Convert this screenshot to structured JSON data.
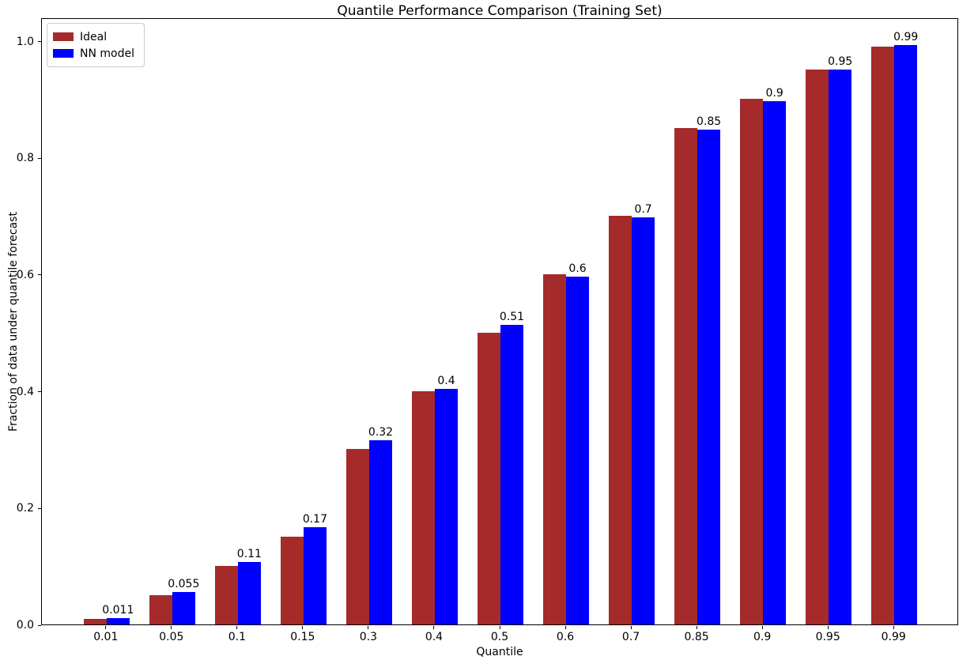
{
  "chart_data": {
    "type": "bar",
    "title": "Quantile Performance Comparison (Training Set)",
    "xlabel": "Quantile",
    "ylabel": "Fraction of data under quantile forecast",
    "categories": [
      "0.01",
      "0.05",
      "0.1",
      "0.15",
      "0.3",
      "0.4",
      "0.5",
      "0.6",
      "0.7",
      "0.85",
      "0.9",
      "0.95",
      "0.99"
    ],
    "series": [
      {
        "name": "Ideal",
        "color": "#A52A2A",
        "values": [
          0.01,
          0.05,
          0.1,
          0.15,
          0.3,
          0.4,
          0.5,
          0.6,
          0.7,
          0.85,
          0.9,
          0.95,
          0.99
        ]
      },
      {
        "name": "NN model",
        "color": "#0000FF",
        "values": [
          0.011,
          0.055,
          0.107,
          0.166,
          0.315,
          0.404,
          0.513,
          0.596,
          0.697,
          0.848,
          0.897,
          0.951,
          0.992
        ],
        "bar_labels": [
          "0.011",
          "0.055",
          "0.11",
          "0.17",
          "0.32",
          "0.4",
          "0.51",
          "0.6",
          "0.7",
          "0.85",
          "0.9",
          "0.95",
          "0.99"
        ]
      }
    ],
    "yticks": [
      "0.0",
      "0.2",
      "0.4",
      "0.6",
      "0.8",
      "1.0"
    ],
    "ylim": [
      0,
      1.04
    ],
    "grid": false,
    "legend_position": "upper-left",
    "axis_color": "#000000",
    "background_color": "#ffffff"
  }
}
